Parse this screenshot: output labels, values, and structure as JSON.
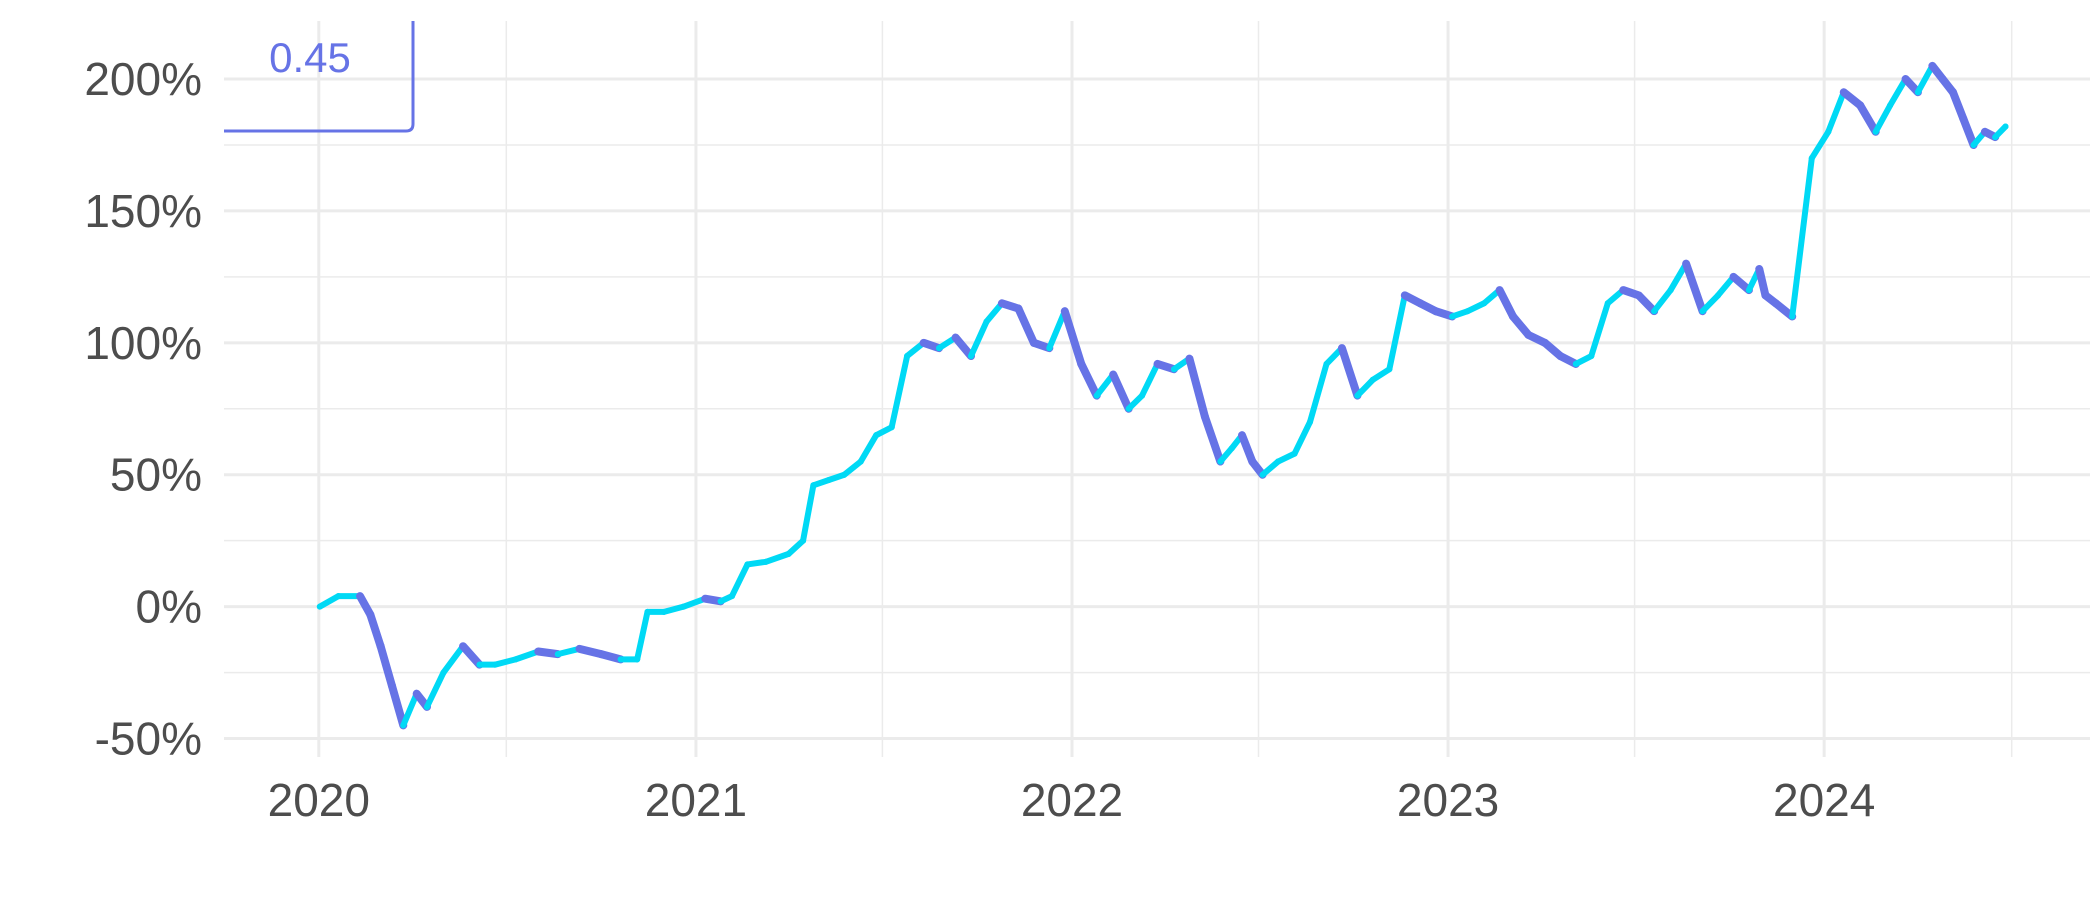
{
  "readout": {
    "value": "0.45"
  },
  "colors": {
    "up": "#00d9f5",
    "down": "#6673e6",
    "grid": "#ebebeb",
    "text": "#4d4d4d"
  },
  "chart_data": {
    "type": "line",
    "title": "",
    "xlabel": "",
    "ylabel": "",
    "y_unit": "%",
    "xlim": [
      "2019-10-01",
      "2024-09-15"
    ],
    "ylim": [
      -57,
      222
    ],
    "x_ticks": [
      "2020",
      "2021",
      "2022",
      "2023",
      "2024"
    ],
    "y_ticks": [
      "-50%",
      "0%",
      "50%",
      "100%",
      "150%",
      "200%"
    ],
    "grid": true,
    "legend": "none",
    "series": [
      {
        "x": [
          "2020-01-02",
          "2020-01-20",
          "2020-02-10",
          "2020-02-20",
          "2020-03-01",
          "2020-03-12",
          "2020-03-23",
          "2020-04-05",
          "2020-04-15",
          "2020-05-01",
          "2020-05-20",
          "2020-06-05",
          "2020-06-20",
          "2020-07-10",
          "2020-08-01",
          "2020-08-20",
          "2020-09-10",
          "2020-10-01",
          "2020-10-20",
          "2020-11-05",
          "2020-11-15",
          "2020-12-01",
          "2020-12-20",
          "2021-01-10",
          "2021-01-25",
          "2021-02-05",
          "2021-02-20",
          "2021-03-10",
          "2021-04-01",
          "2021-04-15",
          "2021-04-25",
          "2021-05-10",
          "2021-05-25",
          "2021-06-10",
          "2021-06-25",
          "2021-07-10",
          "2021-07-25",
          "2021-08-10",
          "2021-08-25",
          "2021-09-10",
          "2021-09-25",
          "2021-10-10",
          "2021-10-25",
          "2021-11-10",
          "2021-11-25",
          "2021-12-10",
          "2021-12-25",
          "2022-01-10",
          "2022-01-25",
          "2022-02-10",
          "2022-02-25",
          "2022-03-10",
          "2022-03-25",
          "2022-04-10",
          "2022-04-25",
          "2022-05-10",
          "2022-05-25",
          "2022-06-05",
          "2022-06-15",
          "2022-06-25",
          "2022-07-05",
          "2022-07-20",
          "2022-08-05",
          "2022-08-20",
          "2022-09-05",
          "2022-09-20",
          "2022-10-05",
          "2022-10-20",
          "2022-11-05",
          "2022-11-20",
          "2022-12-05",
          "2022-12-20",
          "2023-01-05",
          "2023-01-20",
          "2023-02-05",
          "2023-02-20",
          "2023-03-05",
          "2023-03-20",
          "2023-04-05",
          "2023-04-20",
          "2023-05-05",
          "2023-05-20",
          "2023-06-05",
          "2023-06-20",
          "2023-07-05",
          "2023-07-20",
          "2023-08-05",
          "2023-08-20",
          "2023-09-05",
          "2023-09-20",
          "2023-10-05",
          "2023-10-20",
          "2023-10-30",
          "2023-11-05",
          "2023-11-15",
          "2023-12-01",
          "2023-12-20",
          "2024-01-05",
          "2024-01-20",
          "2024-02-05",
          "2024-02-20",
          "2024-03-05",
          "2024-03-20",
          "2024-04-01",
          "2024-04-15",
          "2024-04-25",
          "2024-05-05",
          "2024-05-15",
          "2024-05-25",
          "2024-06-05",
          "2024-06-15",
          "2024-06-25"
        ],
        "y": [
          0,
          4,
          4,
          -3,
          -15,
          -30,
          -45,
          -33,
          -38,
          -25,
          -15,
          -22,
          -22,
          -20,
          -17,
          -18,
          -16,
          -18,
          -20,
          -20,
          -2,
          -2,
          0,
          3,
          2,
          4,
          16,
          17,
          20,
          25,
          46,
          48,
          50,
          55,
          65,
          68,
          95,
          100,
          98,
          102,
          95,
          108,
          115,
          113,
          100,
          98,
          112,
          92,
          80,
          88,
          75,
          80,
          92,
          90,
          94,
          72,
          55,
          60,
          65,
          55,
          50,
          55,
          58,
          70,
          92,
          98,
          80,
          86,
          90,
          118,
          115,
          112,
          110,
          112,
          115,
          120,
          110,
          103,
          100,
          95,
          92,
          95,
          115,
          120,
          118,
          112,
          120,
          130,
          112,
          118,
          125,
          120,
          128,
          118,
          115,
          110,
          170,
          180,
          195,
          190,
          180,
          190,
          200,
          195,
          205,
          200,
          195,
          185,
          175,
          180,
          178,
          182
        ]
      }
    ]
  }
}
